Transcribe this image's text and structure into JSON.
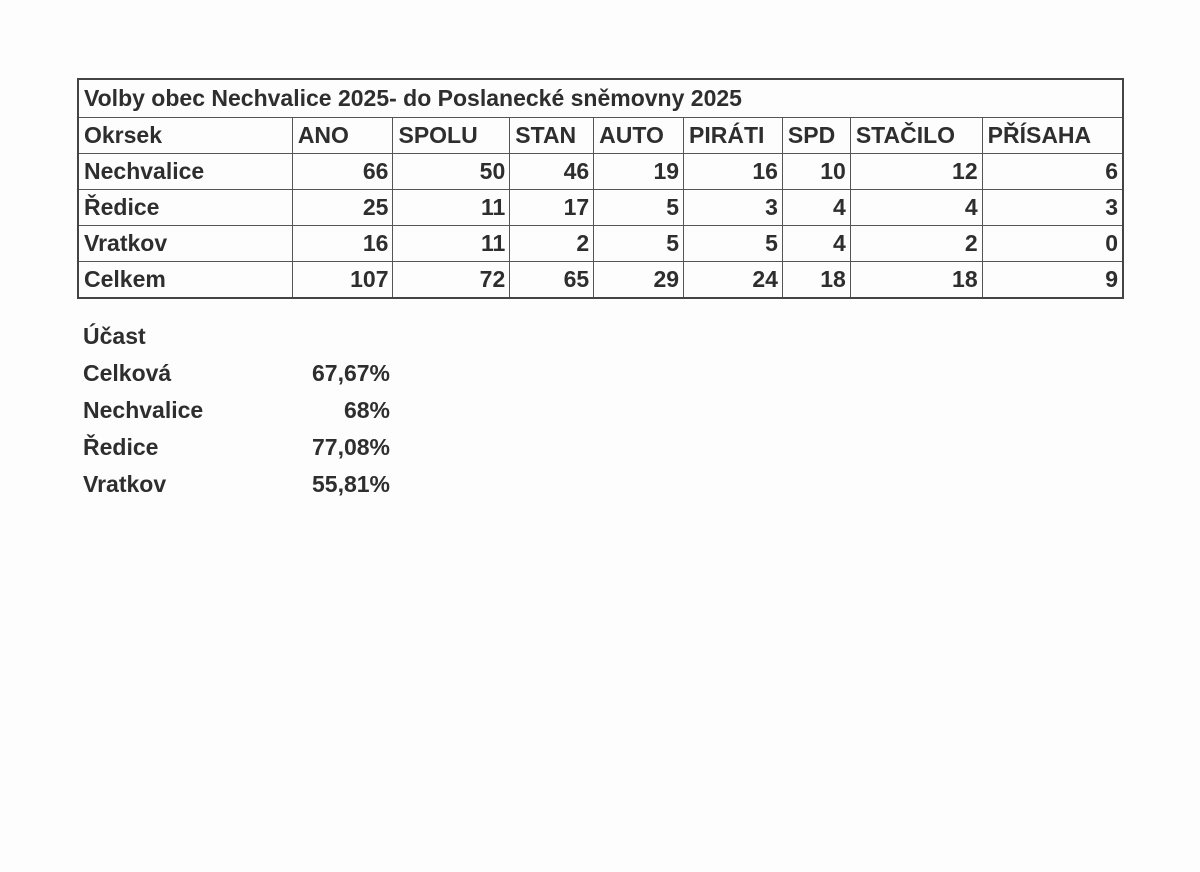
{
  "table": {
    "title": "Volby  obec Nechvalice 2025- do Poslanecké sněmovny 2025",
    "headers": [
      "Okrsek",
      "ANO",
      "SPOLU",
      "STAN",
      "AUTO",
      "PIRÁTI",
      "SPD",
      "STAČILO",
      "PŘÍSAHA"
    ],
    "rows": [
      [
        "Nechvalice",
        "66",
        "50",
        "46",
        "19",
        "16",
        "10",
        "12",
        "6"
      ],
      [
        "Ředice",
        "25",
        "11",
        "17",
        "5",
        "3",
        "4",
        "4",
        "3"
      ],
      [
        "Vratkov",
        "16",
        "11",
        "2",
        "5",
        "5",
        "4",
        "2",
        "0"
      ],
      [
        "Celkem",
        "107",
        "72",
        "65",
        "29",
        "24",
        "18",
        "18",
        "9"
      ]
    ]
  },
  "turnout": {
    "heading": "Účast",
    "rows": [
      {
        "label": "Celková",
        "value": "67,67%"
      },
      {
        "label": "Nechvalice",
        "value": "68%"
      },
      {
        "label": "Ředice",
        "value": "77,08%"
      },
      {
        "label": "Vratkov",
        "value": "55,81%"
      }
    ]
  }
}
